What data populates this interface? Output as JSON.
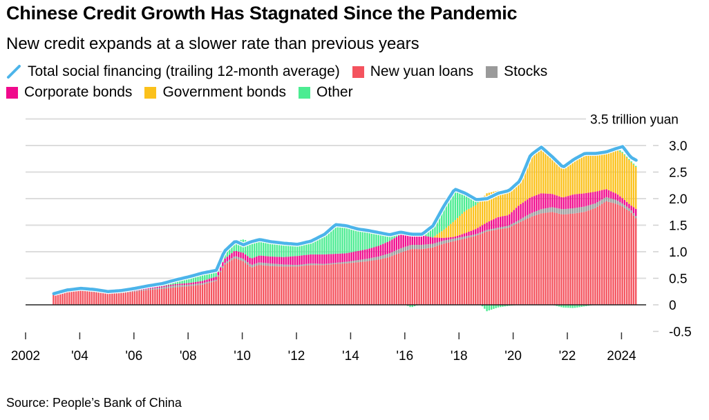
{
  "title": "Chinese Credit Growth Has Stagnated Since the Pandemic",
  "subtitle": "New credit expands at a slower rate than previous years",
  "source": "Source: People’s Bank of China",
  "legend": [
    {
      "name": "Total social financing (trailing 12-month average)",
      "color": "#4cb4ea",
      "kind": "line"
    },
    {
      "name": "New yuan loans",
      "color": "#f4535e",
      "kind": "box"
    },
    {
      "name": "Stocks",
      "color": "#9a9a9a",
      "kind": "box"
    },
    {
      "name": "Corporate bonds",
      "color": "#f0098c",
      "kind": "box"
    },
    {
      "name": "Government bonds",
      "color": "#fbc11b",
      "kind": "box"
    },
    {
      "name": "Other",
      "color": "#4cec92",
      "kind": "box"
    }
  ],
  "chart_data": {
    "type": "bar",
    "stacked": true,
    "title": "Chinese Credit Growth Has Stagnated Since the Pandemic",
    "subtitle": "New credit expands at a slower rate than previous years",
    "xlabel": "",
    "ylabel": "trillion yuan",
    "y_unit_label": "3.5 trillion yuan",
    "ylim": [
      -0.5,
      3.5
    ],
    "yticks": [
      -0.5,
      0,
      0.5,
      1.0,
      1.5,
      2.0,
      2.5,
      3.0,
      3.5
    ],
    "ytick_labels": [
      "-0.5",
      "0",
      "0.5",
      "1.0",
      "1.5",
      "2.0",
      "2.5",
      "3.0",
      "3.5 trillion yuan"
    ],
    "xlim": [
      2002,
      2025
    ],
    "xticks": [
      2002,
      2004,
      2006,
      2008,
      2010,
      2012,
      2014,
      2016,
      2018,
      2020,
      2022,
      2024
    ],
    "xtick_labels": [
      "2002",
      "'04",
      "'06",
      "'08",
      "'10",
      "'12",
      "'14",
      "'16",
      "'18",
      "'20",
      "'22",
      "2024"
    ],
    "grid": true,
    "legend_position": "top-left",
    "frequency": "monthly (values below are approximate anchor points, interpolated monthly)",
    "x": [
      2003.0,
      2003.5,
      2004.0,
      2004.5,
      2005.0,
      2005.5,
      2006.0,
      2006.5,
      2007.0,
      2007.5,
      2008.0,
      2008.5,
      2009.0,
      2009.3,
      2009.7,
      2010.0,
      2010.3,
      2010.6,
      2011.0,
      2011.5,
      2012.0,
      2012.5,
      2013.0,
      2013.4,
      2013.8,
      2014.2,
      2014.6,
      2015.0,
      2015.4,
      2015.8,
      2016.2,
      2016.6,
      2017.0,
      2017.4,
      2017.8,
      2018.2,
      2018.6,
      2019.0,
      2019.4,
      2019.8,
      2020.2,
      2020.6,
      2021.0,
      2021.4,
      2021.8,
      2022.2,
      2022.6,
      2023.0,
      2023.4,
      2023.8,
      2024.0,
      2024.3,
      2024.55
    ],
    "series": [
      {
        "name": "New yuan loans",
        "color": "#f4535e",
        "values": [
          0.2,
          0.25,
          0.27,
          0.24,
          0.21,
          0.22,
          0.25,
          0.28,
          0.3,
          0.33,
          0.35,
          0.38,
          0.45,
          0.75,
          0.88,
          0.82,
          0.7,
          0.75,
          0.73,
          0.72,
          0.72,
          0.75,
          0.75,
          0.77,
          0.78,
          0.8,
          0.82,
          0.85,
          0.9,
          0.98,
          1.05,
          1.05,
          1.08,
          1.15,
          1.2,
          1.25,
          1.3,
          1.38,
          1.42,
          1.45,
          1.55,
          1.65,
          1.72,
          1.75,
          1.7,
          1.72,
          1.75,
          1.82,
          1.95,
          1.9,
          1.85,
          1.75,
          1.6
        ]
      },
      {
        "name": "Stocks",
        "color": "#9a9a9a",
        "values": [
          0.01,
          0.01,
          0.01,
          0.01,
          0.01,
          0.01,
          0.01,
          0.02,
          0.03,
          0.04,
          0.03,
          0.03,
          0.02,
          0.03,
          0.04,
          0.05,
          0.05,
          0.05,
          0.05,
          0.04,
          0.03,
          0.03,
          0.02,
          0.02,
          0.03,
          0.04,
          0.05,
          0.06,
          0.07,
          0.08,
          0.08,
          0.08,
          0.07,
          0.06,
          0.05,
          0.04,
          0.03,
          0.03,
          0.03,
          0.04,
          0.05,
          0.07,
          0.08,
          0.09,
          0.1,
          0.1,
          0.1,
          0.09,
          0.08,
          0.07,
          0.06,
          0.05,
          0.04
        ]
      },
      {
        "name": "Corporate bonds",
        "color": "#f0098c",
        "values": [
          0.0,
          0.0,
          0.0,
          0.0,
          0.01,
          0.02,
          0.02,
          0.02,
          0.02,
          0.02,
          0.03,
          0.04,
          0.06,
          0.08,
          0.1,
          0.11,
          0.12,
          0.13,
          0.13,
          0.14,
          0.17,
          0.17,
          0.18,
          0.17,
          0.16,
          0.17,
          0.18,
          0.2,
          0.23,
          0.26,
          0.25,
          0.18,
          0.12,
          0.05,
          0.03,
          0.06,
          0.1,
          0.14,
          0.2,
          0.2,
          0.28,
          0.3,
          0.3,
          0.25,
          0.22,
          0.26,
          0.25,
          0.22,
          0.15,
          0.12,
          0.1,
          0.08,
          0.15
        ]
      },
      {
        "name": "Government bonds",
        "color": "#fbc11b",
        "values": [
          0.0,
          0.0,
          0.0,
          0.0,
          0.0,
          0.0,
          0.0,
          0.0,
          0.0,
          0.0,
          0.0,
          0.0,
          0.0,
          0.0,
          0.0,
          0.0,
          0.0,
          0.0,
          0.0,
          0.0,
          0.0,
          0.0,
          0.0,
          0.0,
          0.0,
          0.0,
          0.0,
          0.0,
          0.0,
          0.0,
          0.0,
          0.0,
          0.0,
          0.15,
          0.3,
          0.42,
          0.45,
          0.55,
          0.5,
          0.48,
          0.45,
          0.75,
          0.82,
          0.7,
          0.62,
          0.62,
          0.75,
          0.72,
          0.68,
          0.82,
          0.85,
          0.82,
          0.78
        ]
      },
      {
        "name": "Other",
        "color": "#4cec92",
        "values": [
          0.0,
          0.02,
          0.03,
          0.03,
          0.02,
          0.02,
          0.03,
          0.04,
          0.05,
          0.08,
          0.12,
          0.15,
          0.12,
          0.15,
          0.18,
          0.25,
          0.32,
          0.3,
          0.28,
          0.26,
          0.22,
          0.25,
          0.38,
          0.55,
          0.52,
          0.42,
          0.35,
          0.25,
          0.12,
          0.05,
          -0.05,
          0.02,
          0.22,
          0.45,
          0.6,
          0.35,
          0.1,
          -0.12,
          -0.05,
          -0.02,
          0.0,
          0.05,
          0.05,
          0.0,
          -0.05,
          -0.06,
          -0.03,
          0.0,
          0.02,
          0.04,
          0.02,
          0.02,
          0.02
        ]
      }
    ],
    "line": {
      "name": "Total social financing (trailing 12-month average)",
      "color": "#4cb4ea",
      "values": [
        0.21,
        0.28,
        0.31,
        0.29,
        0.25,
        0.27,
        0.31,
        0.36,
        0.4,
        0.47,
        0.53,
        0.6,
        0.65,
        1.01,
        1.2,
        1.13,
        1.19,
        1.23,
        1.19,
        1.16,
        1.14,
        1.2,
        1.33,
        1.51,
        1.49,
        1.43,
        1.4,
        1.36,
        1.32,
        1.37,
        1.33,
        1.33,
        1.49,
        1.86,
        2.18,
        2.1,
        1.98,
        2.0,
        2.1,
        2.15,
        2.33,
        2.82,
        2.97,
        2.79,
        2.59,
        2.74,
        2.85,
        2.85,
        2.88,
        2.95,
        2.98,
        2.78,
        2.71
      ]
    }
  }
}
